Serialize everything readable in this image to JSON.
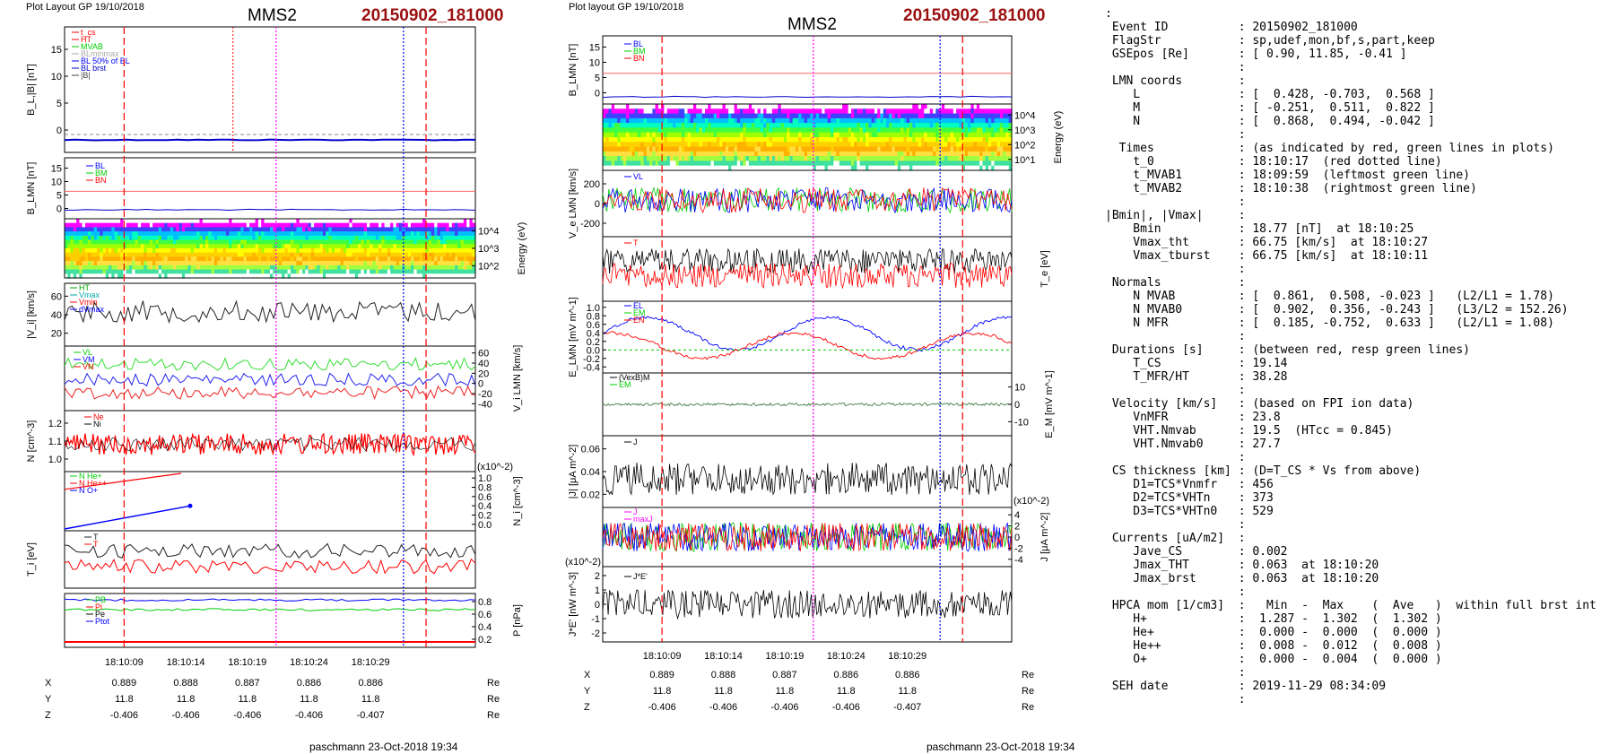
{
  "header": {
    "left_caption": "Plot Layout GP 19/10/2018",
    "mid_caption": "Plot layout GP 19/10/2018",
    "spacecraft": "MMS2",
    "event": "20150902_181000"
  },
  "footer": {
    "left": "paschmann 23-Oct-2018 19:34",
    "mid": "paschmann 23-Oct-2018 19:34"
  },
  "time_axis": {
    "labels": [
      "18:10:09",
      "18:10:14",
      "18:10:19",
      "18:10:24",
      "18:10:29"
    ]
  },
  "coords": {
    "row_labels": [
      "X",
      "Y",
      "Z"
    ],
    "unit": "Re",
    "X": [
      "0.889",
      "0.888",
      "0.887",
      "0.886",
      "0.886"
    ],
    "Y": [
      "11.8",
      "11.8",
      "11.8",
      "11.8",
      "11.8"
    ],
    "Z": [
      "-0.406",
      "-0.406",
      "-0.406",
      "-0.406",
      "-0.407"
    ]
  },
  "chart_data": [
    {
      "panel": "left-1",
      "type": "line",
      "ylabel": "B_L,|B| [nT]",
      "yticks": [
        "0",
        "5",
        "10",
        "15"
      ],
      "ylim": [
        -2,
        19
      ],
      "legend": [
        "t_cs",
        "HT",
        "MVAB",
        "BLminmax",
        "BL 50% of BL",
        "BL brst",
        "|B|"
      ],
      "series": [
        {
          "name": "BL",
          "color": "#0000cc",
          "y": [
            0.6,
            0.2,
            -0.3,
            -0.6,
            -0.8,
            -1.0
          ]
        },
        {
          "name": "|B|",
          "color": "#444444",
          "y": [
            0.3,
            0.3,
            0.3,
            0.3,
            0.3,
            0.3
          ]
        }
      ]
    },
    {
      "panel": "left-2",
      "type": "line",
      "ylabel": "B_LMN [nT]",
      "yticks": [
        "0",
        "5",
        "10",
        "15"
      ],
      "legend": [
        "BL",
        "BM",
        "BN"
      ],
      "series": [
        {
          "name": "BL",
          "color": "#0000cc",
          "y": [
            0.4,
            0.3,
            0.1,
            0.0,
            -0.1,
            -0.2
          ]
        },
        {
          "name": "BM",
          "color": "#00cc00",
          "y": [
            0.1,
            0.1,
            0.1,
            0.1,
            0.1,
            0.1
          ]
        },
        {
          "name": "BN",
          "color": "#ff6666",
          "y": [
            4.8,
            4.8,
            4.8,
            4.8,
            4.8,
            4.8
          ]
        }
      ]
    },
    {
      "panel": "left-3",
      "type": "heatmap",
      "ylabel": "Energy (eV)",
      "yticks": [
        "10^4",
        "10^3",
        "10^2"
      ]
    },
    {
      "panel": "left-4",
      "type": "line",
      "ylabel": "|V_i| [km/s]",
      "yticks": [
        "20",
        "40",
        "60"
      ],
      "legend": [
        "HT",
        "Vmax",
        "Vmin",
        "dVmax"
      ]
    },
    {
      "panel": "left-5",
      "type": "line",
      "ylabel": "V_i LMN [km/s]",
      "yticks": [
        "60",
        "40",
        "20",
        "0",
        "-20",
        "-40"
      ],
      "legend": [
        "VL",
        "VM",
        "VN"
      ]
    },
    {
      "panel": "left-6",
      "type": "line",
      "ylabel": "N [cm^-3]",
      "yticks": [
        "1.0",
        "1.1",
        "1.2"
      ],
      "legend": [
        "Ne",
        "Ni"
      ]
    },
    {
      "panel": "left-7",
      "type": "line",
      "ylabel": "N_i [cm^-3]",
      "scale": "(x10^-2)",
      "yticks": [
        "0.0",
        "0.2",
        "0.4",
        "0.6",
        "0.8",
        "1.0"
      ],
      "legend": [
        "N He+",
        "N He++",
        "N O+"
      ],
      "series": [
        {
          "name": "N O+",
          "color": "#0000cc",
          "y": [
            0.0,
            0.4
          ]
        }
      ]
    },
    {
      "panel": "left-8",
      "type": "line",
      "ylabel": "T_i [eV]",
      "legend": [
        "T",
        "T"
      ]
    },
    {
      "panel": "left-9",
      "type": "line",
      "ylabel": "P [nPa]",
      "yticks": [
        "0.2",
        "0.4",
        "0.6",
        "0.8"
      ],
      "legend": [
        "PB",
        "Pi",
        "Pe",
        "Ptot"
      ]
    },
    {
      "panel": "mid-1",
      "type": "line",
      "ylabel": "B_LMN [nT]",
      "yticks": [
        "0",
        "5",
        "10",
        "15"
      ],
      "legend": [
        "BL",
        "BM",
        "BN"
      ]
    },
    {
      "panel": "mid-2",
      "type": "heatmap",
      "ylabel": "Energy (eV)",
      "yticks": [
        "10^4",
        "10^3",
        "10^2",
        "10^1"
      ]
    },
    {
      "panel": "mid-3",
      "type": "line",
      "ylabel": "V_e LMN [km/s]",
      "yticks": [
        "200",
        "0",
        "-200"
      ],
      "legend": [
        "VL"
      ]
    },
    {
      "panel": "mid-4",
      "type": "line",
      "ylabel": "T_e [eV]",
      "legend": [
        "T"
      ]
    },
    {
      "panel": "mid-5",
      "type": "line",
      "ylabel": "E_LMN [mV m^-1]",
      "yticks": [
        "1.0",
        "0.8",
        "0.6",
        "0.4",
        "0.2",
        "0.0",
        "-0.2",
        "-0.4"
      ],
      "legend": [
        "EL",
        "EM",
        "EN"
      ]
    },
    {
      "panel": "mid-6",
      "type": "line",
      "ylabel": "E_M [mV m^-1]",
      "yticks": [
        "10",
        "0",
        "-10"
      ],
      "legend": [
        "(VexB)M",
        "EM"
      ]
    },
    {
      "panel": "mid-7",
      "type": "line",
      "ylabel": "|J| [μA m^-2]",
      "yticks": [
        "0.06",
        "0.04",
        "0.02"
      ],
      "legend": [
        "J"
      ]
    },
    {
      "panel": "mid-8",
      "type": "line",
      "ylabel": "J [μA m^-2]",
      "scale": "(x10^-2)",
      "yticks": [
        "4",
        "2",
        "0",
        "-2",
        "-4"
      ],
      "legend": [
        "J",
        "maxJ"
      ]
    },
    {
      "panel": "mid-9",
      "type": "line",
      "ylabel": "J*E' [nW m^-3]",
      "scale": "(x10^-2)",
      "yticks": [
        "2",
        "1",
        "0",
        "-1",
        "-2"
      ],
      "legend": [
        "J*E'"
      ]
    }
  ],
  "info_text": [
    ":",
    " Event ID          : 20150902_181000",
    " FlagStr           : sp,udef,mon,bf,s,part,keep",
    " GSEpos [Re]       : [ 0.90, 11.85, -0.41 ]",
    "                   :",
    " LMN coords        :",
    "    L              : [  0.428, -0.703,  0.568 ]",
    "    M              : [ -0.251,  0.511,  0.822 ]",
    "    N              : [  0.868,  0.494, -0.042 ]",
    "                   :",
    "  Times            : (as indicated by red, green lines in plots)",
    "    t_0            : 18:10:17  (red dotted line)",
    "    t_MVAB1        : 18:09:59  (leftmost green line)",
    "    t_MVAB2        : 18:10:38  (rightmost green line)",
    "                   :",
    "|Bmin|, |Vmax|     :",
    "    Bmin           : 18.77 [nT]  at 18:10:25",
    "    Vmax_tht       : 66.75 [km/s]  at 18:10:27",
    "    Vmax_tburst    : 66.75 [km/s]  at 18:10:11",
    "                   :",
    " Normals           :",
    "    N MVAB         : [  0.861,  0.508, -0.023 ]   (L2/L1 = 1.78)",
    "    N MVAB0        : [  0.902,  0.356, -0.243 ]   (L3/L2 = 152.26)",
    "    N MFR          : [  0.185, -0.752,  0.633 ]   (L2/L1 = 1.08)",
    "                   :",
    " Durations [s]     : (between red, resp green lines)",
    "    T_CS           : 19.14",
    "    T_MFR/HT       : 38.28",
    "                   :",
    " Velocity [km/s]   : (based on FPI ion data)",
    "    VnMFR          : 23.8",
    "    VHT.Nmvab      : 19.5  (HTcc = 0.845)",
    "    VHT.Nmvab0     : 27.7",
    "                   :",
    " CS thickness [km] : (D=T_CS * Vs from above)",
    "    D1=TCS*Vnmfr   : 456",
    "    D2=TCS*VHTn    : 373",
    "    D3=TCS*VHTn0   : 529",
    "                   :",
    " Currents [uA/m2]  :",
    "    Jave_CS        : 0.002",
    "    Jmax_THT       : 0.063  at 18:10:20",
    "    Jmax_brst      : 0.063  at 18:10:20",
    "                   :",
    " HPCA mom [1/cm3]  :   Min  -  Max    (  Ave   )  within full brst int",
    "    H+             :  1.287 -  1.302  (  1.302 )",
    "    He+            :  0.000 -  0.000  (  0.000 )",
    "    He++           :  0.008 -  0.012  (  0.008 )",
    "    O+             :  0.000 -  0.004  (  0.000 )",
    "                   :",
    " SEH date          : 2019-11-29 08:34:09",
    "                   :"
  ]
}
